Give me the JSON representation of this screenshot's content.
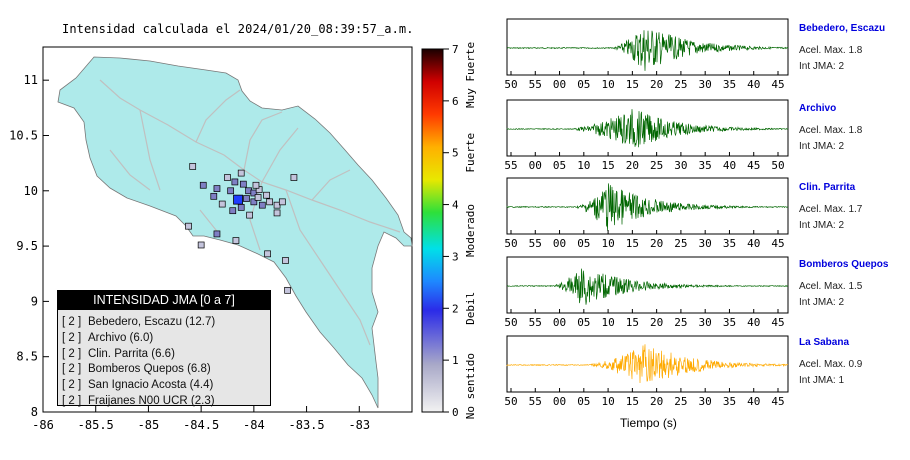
{
  "map": {
    "title": "Intensidad calculada el 2024/01/20_08:39:57_a.m.",
    "x_ticks": [
      "-86",
      "-85.5",
      "-85",
      "-84.5",
      "-84",
      "-83.5",
      "-83"
    ],
    "y_ticks": [
      "11",
      "10.5",
      "10",
      "9.5",
      "9",
      "8.5",
      "8"
    ],
    "epicenter_color": "#1f3cff"
  },
  "colorbar": {
    "ticks": [
      "0",
      "1",
      "2",
      "3",
      "4",
      "5",
      "6",
      "7"
    ],
    "categories": [
      "No sentido",
      "Debil",
      "Moderado",
      "Fuerte",
      "Muy Fuerte"
    ]
  },
  "legend": {
    "title": "INTENSIDAD JMA [0 a 7]",
    "items": [
      {
        "level": "[ 2 ]",
        "text": "Bebedero, Escazu (12.7)"
      },
      {
        "level": "[ 2 ]",
        "text": "Archivo (6.0)"
      },
      {
        "level": "[ 2 ]",
        "text": "Clin. Parrita (6.6)"
      },
      {
        "level": "[ 2 ]",
        "text": "Bomberos Quepos (6.8)"
      },
      {
        "level": "[ 2 ]",
        "text": "San Ignacio Acosta (4.4)"
      },
      {
        "level": "[ 2 ]",
        "text": "Fraijanes N00 UCR (2.3)"
      }
    ]
  },
  "chart_data": [
    {
      "type": "scatter",
      "title": "Intensidad calculada el 2024/01/20_08:39:57_a.m.",
      "xlim": [
        -86,
        -82.5
      ],
      "ylim": [
        8,
        11.3
      ],
      "color_scale": "Intensidad JMA 0-7",
      "epicenter": {
        "x": -84.15,
        "y": 9.92
      },
      "stations": [
        {
          "x": -84.48,
          "y": 10.05,
          "i": 2
        },
        {
          "x": -84.35,
          "y": 10.02,
          "i": 2
        },
        {
          "x": -84.22,
          "y": 10.0,
          "i": 2
        },
        {
          "x": -84.18,
          "y": 10.08,
          "i": 2
        },
        {
          "x": -84.1,
          "y": 10.06,
          "i": 2
        },
        {
          "x": -84.05,
          "y": 10.0,
          "i": 2
        },
        {
          "x": -84.0,
          "y": 9.98,
          "i": 2
        },
        {
          "x": -83.95,
          "y": 10.01,
          "i": 1
        },
        {
          "x": -84.07,
          "y": 9.93,
          "i": 2
        },
        {
          "x": -84.0,
          "y": 9.9,
          "i": 2
        },
        {
          "x": -83.92,
          "y": 9.87,
          "i": 2
        },
        {
          "x": -83.85,
          "y": 9.9,
          "i": 1
        },
        {
          "x": -83.78,
          "y": 9.87,
          "i": 1
        },
        {
          "x": -84.12,
          "y": 9.85,
          "i": 2
        },
        {
          "x": -84.2,
          "y": 9.82,
          "i": 2
        },
        {
          "x": -84.3,
          "y": 9.88,
          "i": 1
        },
        {
          "x": -84.38,
          "y": 9.95,
          "i": 2
        },
        {
          "x": -84.25,
          "y": 10.12,
          "i": 1
        },
        {
          "x": -84.12,
          "y": 10.16,
          "i": 1
        },
        {
          "x": -83.96,
          "y": 9.94,
          "i": 1
        },
        {
          "x": -83.88,
          "y": 9.96,
          "i": 1
        },
        {
          "x": -83.73,
          "y": 9.9,
          "i": 1
        },
        {
          "x": -83.62,
          "y": 10.12,
          "i": 1
        },
        {
          "x": -84.58,
          "y": 10.22,
          "i": 1
        },
        {
          "x": -84.62,
          "y": 9.68,
          "i": 1
        },
        {
          "x": -84.35,
          "y": 9.61,
          "i": 2
        },
        {
          "x": -84.17,
          "y": 9.55,
          "i": 1
        },
        {
          "x": -83.98,
          "y": 10.05,
          "i": 1
        },
        {
          "x": -84.5,
          "y": 9.51,
          "i": 1
        },
        {
          "x": -83.87,
          "y": 9.43,
          "i": 1
        },
        {
          "x": -83.7,
          "y": 9.37,
          "i": 1
        },
        {
          "x": -83.68,
          "y": 9.1,
          "i": 1
        },
        {
          "x": -84.04,
          "y": 9.78,
          "i": 1
        },
        {
          "x": -83.78,
          "y": 9.8,
          "i": 1
        }
      ]
    },
    {
      "type": "line",
      "xlabel": "Tiempo (s)",
      "series": [
        {
          "name": "Bebedero, Escazu",
          "acel_label": "Acel. Max. 1.8",
          "jma_label": "Int JMA: 2",
          "ticks": [
            "50",
            "55",
            "00",
            "05",
            "10",
            "15",
            "20",
            "25",
            "30",
            "35",
            "40",
            "45"
          ]
        },
        {
          "name": "Archivo",
          "acel_label": "Acel. Max. 1.8",
          "jma_label": "Int JMA: 2",
          "ticks": [
            "55",
            "00",
            "05",
            "10",
            "15",
            "20",
            "25",
            "30",
            "35",
            "40",
            "45",
            "50"
          ]
        },
        {
          "name": "Clin. Parrita",
          "acel_label": "Acel. Max. 1.7",
          "jma_label": "Int JMA: 2",
          "ticks": [
            "50",
            "55",
            "00",
            "05",
            "10",
            "15",
            "20",
            "25",
            "30",
            "35",
            "40",
            "45"
          ]
        },
        {
          "name": "Bomberos Quepos",
          "acel_label": "Acel. Max. 1.5",
          "jma_label": "Int JMA: 2",
          "ticks": [
            "50",
            "55",
            "00",
            "05",
            "10",
            "15",
            "20",
            "25",
            "30",
            "35",
            "40",
            "45"
          ]
        },
        {
          "name": "La Sabana",
          "acel_label": "Acel. Max. 0.9",
          "jma_label": "Int JMA: 1",
          "ticks": [
            "50",
            "55",
            "00",
            "05",
            "10",
            "15",
            "20",
            "25",
            "30",
            "35",
            "40",
            "45"
          ]
        }
      ]
    }
  ],
  "waves": {
    "colors": [
      "#006600",
      "#006600",
      "#006600",
      "#006600",
      "#ffaa00"
    ]
  }
}
